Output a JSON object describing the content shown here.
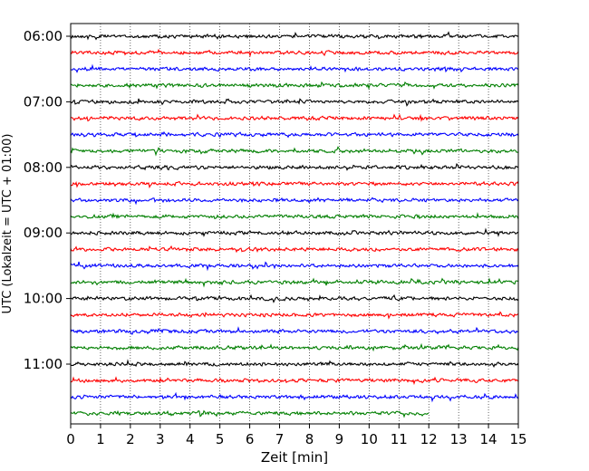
{
  "chart_data": {
    "type": "line",
    "title": "",
    "xlabel": "Zeit  [min]",
    "ylabel": "UTC (Lokalzeit = UTC + 01:00)",
    "xlim": [
      0,
      15
    ],
    "x_ticks": [
      0,
      1,
      2,
      3,
      4,
      5,
      6,
      7,
      8,
      9,
      10,
      11,
      12,
      13,
      14,
      15
    ],
    "x_tick_labels": [
      "0",
      "1",
      "2",
      "3",
      "4",
      "5",
      "6",
      "7",
      "8",
      "9",
      "10",
      "11",
      "12",
      "13",
      "14",
      "15"
    ],
    "y_ticks": [
      {
        "row": 0,
        "label": "06:00"
      },
      {
        "row": 4,
        "label": "07:00"
      },
      {
        "row": 8,
        "label": "08:00"
      },
      {
        "row": 12,
        "label": "09:00"
      },
      {
        "row": 16,
        "label": "10:00"
      },
      {
        "row": 20,
        "label": "11:00"
      }
    ],
    "trace_rows": 24,
    "row_minutes": 15,
    "last_row_end_min": 12,
    "x_grid": "dotted",
    "trace_colors": [
      "#000000",
      "#ff0000",
      "#0000ff",
      "#007f00"
    ]
  }
}
